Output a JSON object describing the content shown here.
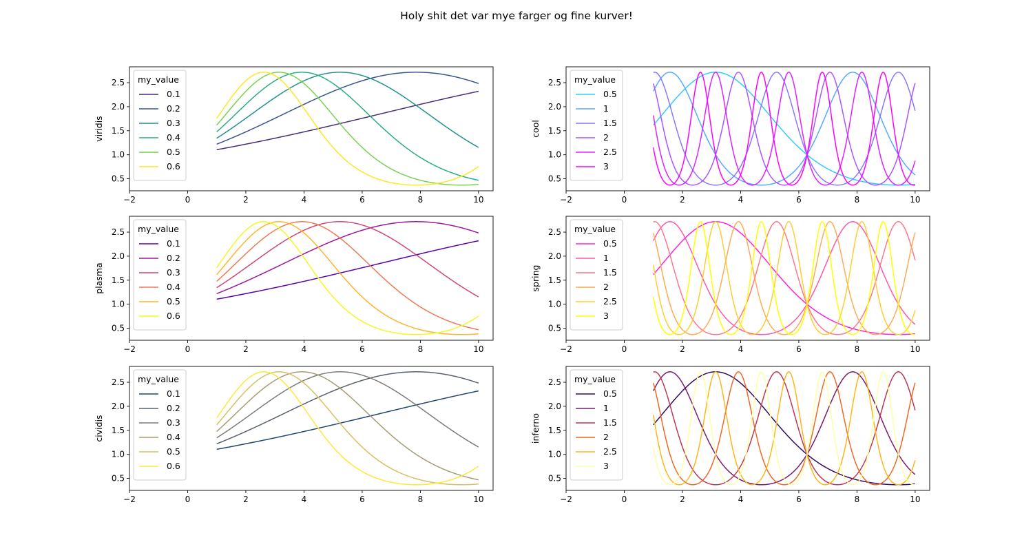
{
  "figure": {
    "title": "Holy shit det var mye farger og fine kurver!"
  },
  "chart_data": [
    {
      "type": "line",
      "ylabel": "viridis",
      "xlim": [
        -2,
        10.5
      ],
      "ylim": [
        0.25,
        2.83
      ],
      "xticks": [
        "−2",
        "0",
        "2",
        "4",
        "6",
        "8",
        "10"
      ],
      "yticks": [
        "0.5",
        "1.0",
        "1.5",
        "2.0",
        "2.5"
      ],
      "legend": {
        "title": "my_value",
        "placement": "upper-left"
      },
      "function": "exp(sin(k*x))",
      "x_range": [
        1,
        10
      ],
      "series": [
        {
          "name": "0.1",
          "k": 0.1,
          "color": "#472d7b"
        },
        {
          "name": "0.2",
          "k": 0.2,
          "color": "#3b528b"
        },
        {
          "name": "0.3",
          "k": 0.3,
          "color": "#21918c"
        },
        {
          "name": "0.4",
          "k": 0.4,
          "color": "#28ae80"
        },
        {
          "name": "0.5",
          "k": 0.5,
          "color": "#7ad151"
        },
        {
          "name": "0.6",
          "k": 0.6,
          "color": "#fde725"
        }
      ]
    },
    {
      "type": "line",
      "ylabel": "cool",
      "xlim": [
        -2,
        10.5
      ],
      "ylim": [
        0.25,
        2.83
      ],
      "xticks": [
        "−2",
        "0",
        "2",
        "4",
        "6",
        "8",
        "10"
      ],
      "yticks": [
        "0.5",
        "1.0",
        "1.5",
        "2.0",
        "2.5"
      ],
      "legend": {
        "title": "my_value",
        "placement": "upper-left"
      },
      "function": "exp(sin(k*x))",
      "x_range": [
        1,
        10
      ],
      "series": [
        {
          "name": "0.5",
          "k": 0.5,
          "color": "#33ccff"
        },
        {
          "name": "1",
          "k": 1,
          "color": "#55aaff"
        },
        {
          "name": "1.5",
          "k": 1.5,
          "color": "#8877ff"
        },
        {
          "name": "2",
          "k": 2,
          "color": "#aa55ff"
        },
        {
          "name": "2.5",
          "k": 2.5,
          "color": "#dd22ff"
        },
        {
          "name": "3",
          "k": 3,
          "color": "#ff00ff"
        }
      ]
    },
    {
      "type": "line",
      "ylabel": "plasma",
      "xlim": [
        -2,
        10.5
      ],
      "ylim": [
        0.25,
        2.83
      ],
      "xticks": [
        "−2",
        "0",
        "2",
        "4",
        "6",
        "8",
        "10"
      ],
      "yticks": [
        "0.5",
        "1.0",
        "1.5",
        "2.0",
        "2.5"
      ],
      "legend": {
        "title": "my_value",
        "placement": "upper-left"
      },
      "function": "exp(sin(k*x))",
      "x_range": [
        1,
        10
      ],
      "series": [
        {
          "name": "0.1",
          "k": 0.1,
          "color": "#5c01a6"
        },
        {
          "name": "0.2",
          "k": 0.2,
          "color": "#9c179e"
        },
        {
          "name": "0.3",
          "k": 0.3,
          "color": "#cc4778"
        },
        {
          "name": "0.4",
          "k": 0.4,
          "color": "#ed7953"
        },
        {
          "name": "0.5",
          "k": 0.5,
          "color": "#fdb42f"
        },
        {
          "name": "0.6",
          "k": 0.6,
          "color": "#f0f921"
        }
      ]
    },
    {
      "type": "line",
      "ylabel": "spring",
      "xlim": [
        -2,
        10.5
      ],
      "ylim": [
        0.25,
        2.83
      ],
      "xticks": [
        "−2",
        "0",
        "2",
        "4",
        "6",
        "8",
        "10"
      ],
      "yticks": [
        "0.5",
        "1.0",
        "1.5",
        "2.0",
        "2.5"
      ],
      "legend": {
        "title": "my_value",
        "placement": "upper-left"
      },
      "function": "exp(sin(k*x))",
      "x_range": [
        1,
        10
      ],
      "series": [
        {
          "name": "0.5",
          "k": 0.5,
          "color": "#ff22dd"
        },
        {
          "name": "1",
          "k": 1,
          "color": "#ff55aa"
        },
        {
          "name": "1.5",
          "k": 1.5,
          "color": "#ff7788"
        },
        {
          "name": "2",
          "k": 2,
          "color": "#ffaa55"
        },
        {
          "name": "2.5",
          "k": 2.5,
          "color": "#ffcc33"
        },
        {
          "name": "3",
          "k": 3,
          "color": "#ffff00"
        }
      ]
    },
    {
      "type": "line",
      "ylabel": "cividis",
      "xlim": [
        -2,
        10.5
      ],
      "ylim": [
        0.25,
        2.83
      ],
      "xticks": [
        "−2",
        "0",
        "2",
        "4",
        "6",
        "8",
        "10"
      ],
      "yticks": [
        "0.5",
        "1.0",
        "1.5",
        "2.0",
        "2.5"
      ],
      "legend": {
        "title": "my_value",
        "placement": "upper-left"
      },
      "function": "exp(sin(k*x))",
      "x_range": [
        1,
        10
      ],
      "series": [
        {
          "name": "0.1",
          "k": 0.1,
          "color": "#234471"
        },
        {
          "name": "0.2",
          "k": 0.2,
          "color": "#57606c"
        },
        {
          "name": "0.3",
          "k": 0.3,
          "color": "#7c7b78"
        },
        {
          "name": "0.4",
          "k": 0.4,
          "color": "#a59c74"
        },
        {
          "name": "0.5",
          "k": 0.5,
          "color": "#d3c164"
        },
        {
          "name": "0.6",
          "k": 0.6,
          "color": "#fee838"
        }
      ]
    },
    {
      "type": "line",
      "ylabel": "inferno",
      "xlim": [
        -2,
        10.5
      ],
      "ylim": [
        0.25,
        2.83
      ],
      "xticks": [
        "−2",
        "0",
        "2",
        "4",
        "6",
        "8",
        "10"
      ],
      "yticks": [
        "0.5",
        "1.0",
        "1.5",
        "2.0",
        "2.5"
      ],
      "legend": {
        "title": "my_value",
        "placement": "upper-left"
      },
      "function": "exp(sin(k*x))",
      "x_range": [
        1,
        10
      ],
      "series": [
        {
          "name": "0.5",
          "k": 0.5,
          "color": "#320a5e"
        },
        {
          "name": "1",
          "k": 1,
          "color": "#781c6d"
        },
        {
          "name": "1.5",
          "k": 1.5,
          "color": "#bc3754"
        },
        {
          "name": "2",
          "k": 2,
          "color": "#ed6925"
        },
        {
          "name": "2.5",
          "k": 2.5,
          "color": "#fbb61a"
        },
        {
          "name": "3",
          "k": 3,
          "color": "#fcffa4"
        }
      ]
    }
  ]
}
